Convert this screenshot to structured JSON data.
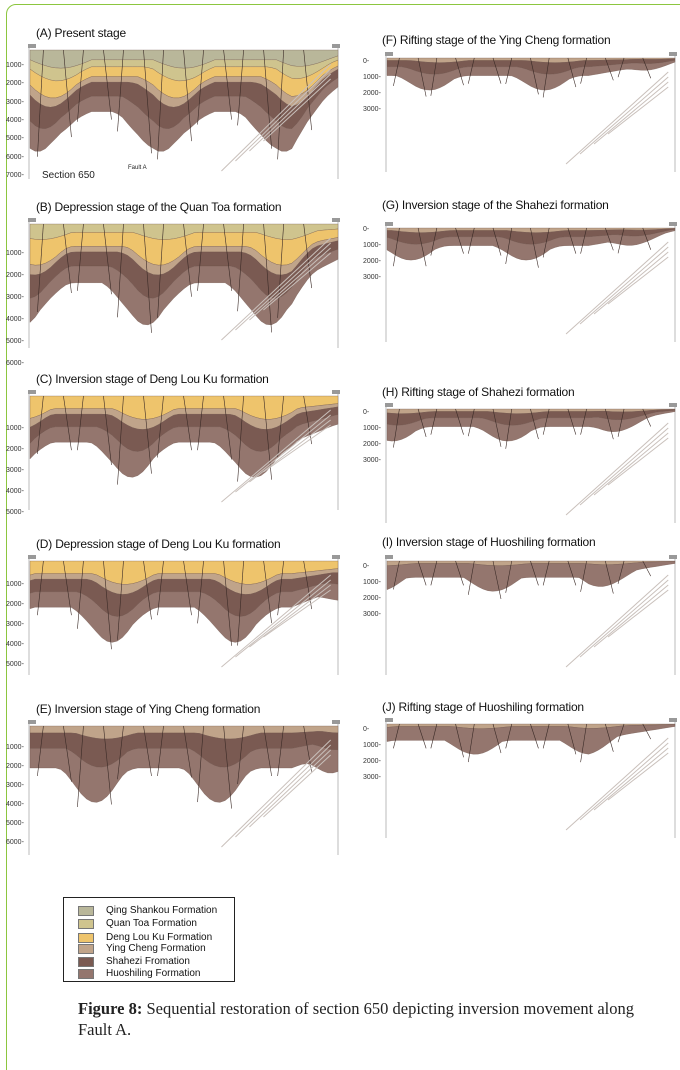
{
  "panels": [
    {
      "title": "(A) Present stage",
      "depth_labels": [
        "1000-",
        "2000-",
        "3000-",
        "4000-",
        "5000-",
        "6000-",
        "7000-"
      ],
      "section_label": "Section 650",
      "fault_label": "Fault A"
    },
    {
      "title": "(B) Depression stage of the Quan Toa formation",
      "depth_labels": [
        "1000-",
        "2000-",
        "3000-",
        "4000-",
        "5000-",
        "6000-"
      ]
    },
    {
      "title": "(C) Inversion stage of Deng Lou Ku formation",
      "depth_labels": [
        "1000-",
        "2000-",
        "3000-",
        "4000-",
        "5000-"
      ]
    },
    {
      "title": "(D) Depression stage of Deng Lou Ku formation",
      "depth_labels": [
        "1000-",
        "2000-",
        "3000-",
        "4000-",
        "5000-"
      ]
    },
    {
      "title": "(E) Inversion stage of Ying Cheng formation",
      "depth_labels": [
        "1000-",
        "2000-",
        "3000-",
        "4000-",
        "5000-",
        "6000-"
      ]
    },
    {
      "title": "(F) Rifting stage of the Ying Cheng formation",
      "depth_labels": [
        "0-",
        "1000-",
        "2000-",
        "3000-"
      ]
    },
    {
      "title": "(G) Inversion stage of the Shahezi formation",
      "depth_labels": [
        "0-",
        "1000-",
        "2000-",
        "3000-"
      ]
    },
    {
      "title": "(H) Rifting stage of Shahezi formation",
      "depth_labels": [
        "0-",
        "1000-",
        "2000-",
        "3000-"
      ]
    },
    {
      "title": "(I) Inversion stage of Huoshiling formation",
      "depth_labels": [
        "0-",
        "1000-",
        "2000-",
        "3000-"
      ]
    },
    {
      "title": "(J) Rifting stage of Huoshiling formation",
      "depth_labels": [
        "0-",
        "1000-",
        "2000-",
        "3000-"
      ]
    }
  ],
  "legend": [
    "Qing Shankou Formation",
    "Quan Toa Formation",
    "Deng Lou Ku Formation",
    "Ying Cheng Formation",
    "Shahezi Fromation",
    "Huoshiling Formation"
  ],
  "caption": {
    "label": "Figure 8:",
    "text": "Sequential restoration of section 650 depicting inversion movement along Fault A."
  }
}
